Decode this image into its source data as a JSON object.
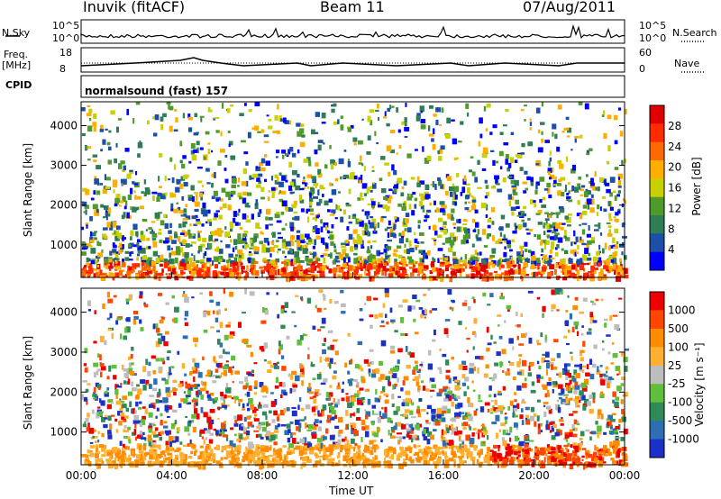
{
  "header": {
    "station": "Inuvik (fitACF)",
    "beam": "Beam 11",
    "date": "07/Aug/2011"
  },
  "strip_labels": {
    "nsky": "N.Sky",
    "nsky_ticks": [
      "10^5",
      "10^0"
    ],
    "nsearch": "N.Search",
    "nsearch_ticks": [
      "10^5",
      "10^0"
    ],
    "freq": "Freq.",
    "freq_unit": "[MHz]",
    "freq_ticks": [
      "18",
      "8"
    ],
    "nave": "Nave",
    "nave_ticks": [
      "60",
      "0"
    ],
    "cpid": "CPID",
    "cpid_value": "normalsound (fast) 157"
  },
  "colors": {
    "power_scale": [
      "#0000ff",
      "#1c4fa8",
      "#2e7d55",
      "#4f9a2a",
      "#c9d000",
      "#ffae00",
      "#ff6a00",
      "#ff2a00",
      "#e00000"
    ],
    "velocity_scale": [
      "#1a30c8",
      "#2d6fb5",
      "#2e8b57",
      "#5fbf3a",
      "#bdbdbd",
      "#ffb030",
      "#ff8c00",
      "#ff4500",
      "#ee0000"
    ]
  },
  "chart_data": [
    {
      "type": "heatmap",
      "title": "",
      "xlabel": "",
      "ylabel": "Slant Range [km]",
      "x_ticks": [
        "00:00",
        "04:00",
        "08:00",
        "12:00",
        "16:00",
        "20:00",
        "00:00"
      ],
      "xlim": [
        0,
        24
      ],
      "ylim": [
        180,
        4600
      ],
      "y_ticks": [
        1000,
        2000,
        3000,
        4000
      ],
      "colorbar": {
        "label": "Power [dB]",
        "ticks": [
          "28",
          "24",
          "20",
          "16",
          "12",
          "8",
          "4"
        ],
        "range": [
          0,
          30
        ]
      }
    },
    {
      "type": "heatmap",
      "title": "",
      "xlabel": "Time UT",
      "ylabel": "Slant Range [km]",
      "x_ticks": [
        "00:00",
        "04:00",
        "08:00",
        "12:00",
        "16:00",
        "20:00",
        "00:00"
      ],
      "xlim": [
        0,
        24
      ],
      "ylim": [
        180,
        4600
      ],
      "y_ticks": [
        1000,
        2000,
        3000,
        4000
      ],
      "colorbar": {
        "label": "Velocity [m s⁻¹]",
        "ticks": [
          "1000",
          "500",
          "100",
          "25",
          "-25",
          "-100",
          "-500",
          "-1000"
        ],
        "range": [
          -1000,
          1000
        ]
      }
    }
  ]
}
